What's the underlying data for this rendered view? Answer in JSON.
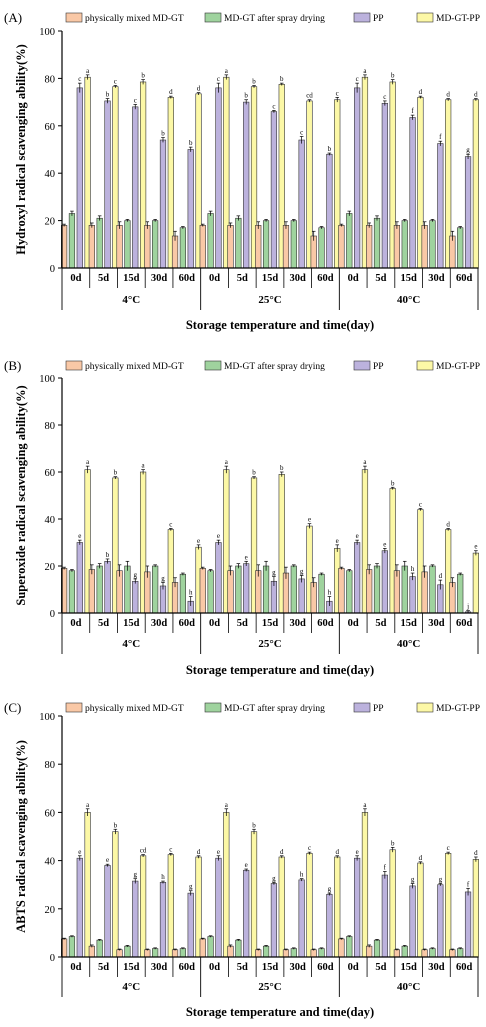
{
  "legend": {
    "series": [
      {
        "name": "physically mixed MD-GT",
        "color": "#f9c8a6"
      },
      {
        "name": "MD-GT after spray drying",
        "color": "#9fd39e"
      },
      {
        "name": "PP",
        "color": "#bcb2dd"
      },
      {
        "name": "MD-GT-PP",
        "color": "#fcf8a6"
      }
    ]
  },
  "chart_data": [
    {
      "type": "bar",
      "panel_label": "(A)",
      "ylabel": "Hydroxyl radical scavenging ability(%)",
      "xlabel": "Storage temperature and time(day)",
      "ylim": [
        0,
        100
      ],
      "yticks": [
        0,
        20,
        40,
        60,
        80,
        100
      ],
      "groups": [
        "4°C",
        "25°C",
        "40°C"
      ],
      "categories": [
        "0d",
        "5d",
        "15d",
        "30d",
        "60d"
      ],
      "series": [
        {
          "name": "physically mixed MD-GT",
          "values": [
            [
              18,
              18,
              18,
              18,
              13.5
            ],
            [
              18,
              18,
              18,
              18,
              13.5
            ],
            [
              18,
              18,
              18,
              18,
              13.5
            ]
          ],
          "errors": [
            [
              0.5,
              1,
              1.5,
              1.5,
              2
            ],
            [
              0.5,
              1,
              1.5,
              1.5,
              2
            ],
            [
              0.5,
              1,
              1.5,
              1.5,
              2
            ]
          ]
        },
        {
          "name": "MD-GT after spray drying",
          "values": [
            [
              23,
              21,
              20,
              20,
              17
            ],
            [
              23,
              21,
              20,
              20,
              17
            ],
            [
              23,
              21,
              20,
              20,
              17
            ]
          ],
          "errors": [
            [
              1,
              1,
              0.5,
              0.5,
              0.5
            ],
            [
              1,
              1,
              0.5,
              0.5,
              0.5
            ],
            [
              1,
              1,
              0.5,
              0.5,
              0.5
            ]
          ]
        },
        {
          "name": "PP",
          "values": [
            [
              76,
              70.5,
              68,
              54,
              50
            ],
            [
              76,
              70,
              66,
              54,
              48
            ],
            [
              76,
              69.5,
              63.5,
              52.5,
              47
            ]
          ],
          "errors": [
            [
              2,
              1,
              1,
              1,
              1
            ],
            [
              2,
              1,
              0.5,
              1.5,
              0.5
            ],
            [
              2,
              1,
              1,
              1,
              1
            ]
          ]
        },
        {
          "name": "MD-GT-PP",
          "values": [
            [
              80.5,
              76.5,
              78.5,
              72,
              73.5
            ],
            [
              80.5,
              76.5,
              77.5,
              70.5,
              71
            ],
            [
              80.5,
              78.5,
              72,
              71,
              71
            ]
          ],
          "errors": [
            [
              1,
              0.5,
              1,
              0.5,
              0.5
            ],
            [
              1,
              0.5,
              0.5,
              0.5,
              1
            ],
            [
              1,
              1,
              0.5,
              0.5,
              0.5
            ]
          ]
        }
      ],
      "labels": {
        "PP": [
          [
            "c",
            "b",
            "c",
            "b",
            "b"
          ],
          [
            "c",
            "b",
            "c",
            "c",
            "b"
          ],
          [
            "c",
            "c",
            "f",
            "f",
            "g"
          ]
        ],
        "MD-GT-PP": [
          [
            "a",
            "c",
            "b",
            "d",
            "d"
          ],
          [
            "a",
            "b",
            "b",
            "cd",
            "c"
          ],
          [
            "a",
            "b",
            "d",
            "d",
            "d"
          ]
        ]
      }
    },
    {
      "type": "bar",
      "panel_label": "(B)",
      "ylabel": "Superoxide radical scavenging ability(%)",
      "xlabel": "Storage temperature and time(day)",
      "ylim": [
        0,
        100
      ],
      "yticks": [
        0,
        20,
        40,
        60,
        80,
        100
      ],
      "groups": [
        "4°C",
        "25°C",
        "40°C"
      ],
      "categories": [
        "0d",
        "5d",
        "15d",
        "30d",
        "60d"
      ],
      "series": [
        {
          "name": "physically mixed MD-GT",
          "values": [
            [
              19,
              18.5,
              18,
              17.5,
              13
            ],
            [
              19,
              18,
              18,
              17,
              13
            ],
            [
              19,
              18.5,
              18,
              17.5,
              13
            ]
          ],
          "errors": [
            [
              0.5,
              2,
              2.5,
              2.5,
              2
            ],
            [
              0.5,
              2,
              2.5,
              2.5,
              2
            ],
            [
              0.5,
              2,
              2.5,
              2.5,
              2
            ]
          ]
        },
        {
          "name": "MD-GT after spray drying",
          "values": [
            [
              18,
              20,
              20,
              20,
              16.5
            ],
            [
              18,
              20,
              20,
              20,
              16.5
            ],
            [
              18,
              20,
              20,
              20,
              16.5
            ]
          ],
          "errors": [
            [
              0.5,
              1,
              2,
              0.5,
              0.5
            ],
            [
              0.5,
              1,
              2,
              0.5,
              0.5
            ],
            [
              0.5,
              1,
              2,
              0.5,
              0.5
            ]
          ]
        },
        {
          "name": "PP",
          "values": [
            [
              30,
              22,
              13.5,
              11.5,
              5
            ],
            [
              30,
              21,
              13.5,
              14.5,
              5
            ],
            [
              30,
              26.5,
              15.5,
              12,
              0.5
            ]
          ],
          "errors": [
            [
              1,
              1,
              1,
              1.5,
              2
            ],
            [
              1,
              1,
              2,
              1.5,
              2
            ],
            [
              1,
              1,
              1.5,
              2,
              0.5
            ]
          ]
        },
        {
          "name": "MD-GT-PP",
          "values": [
            [
              61,
              57.5,
              60,
              35.5,
              28
            ],
            [
              61,
              57.5,
              59,
              37,
              27.5
            ],
            [
              61,
              53,
              44,
              35.5,
              25.5
            ]
          ],
          "errors": [
            [
              1.5,
              0.5,
              1,
              0.5,
              1
            ],
            [
              1.5,
              0.5,
              1,
              1,
              1.5
            ],
            [
              1.5,
              0.5,
              0.5,
              0.5,
              1
            ]
          ]
        }
      ],
      "labels": {
        "PP": [
          [
            "e",
            "b",
            "g",
            "g",
            "h"
          ],
          [
            "e",
            "e",
            "g",
            "g",
            "h"
          ],
          [
            "e",
            "e",
            "h",
            "d",
            "j"
          ]
        ],
        "MD-GT-PP": [
          [
            "a",
            "b",
            "a",
            "c",
            "e"
          ],
          [
            "a",
            "b",
            "b",
            "e",
            "e"
          ],
          [
            "a",
            "b",
            "c",
            "d",
            "e"
          ]
        ]
      }
    },
    {
      "type": "bar",
      "panel_label": "(C)",
      "ylabel": "ABTS radical scavenging ability(%)",
      "xlabel": "Storage temperature and time(day)",
      "ylim": [
        0,
        100
      ],
      "yticks": [
        0,
        20,
        40,
        60,
        80,
        100
      ],
      "groups": [
        "4°C",
        "25°C",
        "40°C"
      ],
      "categories": [
        "0d",
        "5d",
        "15d",
        "30d",
        "60d"
      ],
      "series": [
        {
          "name": "physically mixed MD-GT",
          "values": [
            [
              7.5,
              4.5,
              3,
              3,
              3
            ],
            [
              7.5,
              4.5,
              3,
              3,
              3
            ],
            [
              7.5,
              4.5,
              3,
              3,
              3
            ]
          ],
          "errors": [
            [
              0.3,
              0.5,
              0.3,
              0.3,
              0.3
            ],
            [
              0.3,
              0.5,
              0.3,
              0.3,
              0.3
            ],
            [
              0.3,
              0.5,
              0.3,
              0.3,
              0.3
            ]
          ]
        },
        {
          "name": "MD-GT after spray drying",
          "values": [
            [
              8.5,
              7,
              4.5,
              3.5,
              3.5
            ],
            [
              8.5,
              7,
              4.5,
              3.5,
              3.5
            ],
            [
              8.5,
              7,
              4.5,
              3.5,
              3.5
            ]
          ],
          "errors": [
            [
              0.3,
              0.3,
              0.3,
              0.3,
              0.3
            ],
            [
              0.3,
              0.3,
              0.3,
              0.3,
              0.3
            ],
            [
              0.3,
              0.3,
              0.3,
              0.3,
              0.3
            ]
          ]
        },
        {
          "name": "PP",
          "values": [
            [
              41,
              38,
              31.5,
              31,
              26.5
            ],
            [
              41,
              36,
              30.5,
              32,
              26
            ],
            [
              41,
              34,
              29.5,
              30,
              27
            ]
          ],
          "errors": [
            [
              1,
              0.5,
              1,
              0.5,
              1
            ],
            [
              1,
              0.5,
              0.5,
              0.5,
              0.5
            ],
            [
              1,
              1.5,
              1,
              0.5,
              1.5
            ]
          ]
        },
        {
          "name": "MD-GT-PP",
          "values": [
            [
              60,
              52,
              42,
              42.5,
              41.5
            ],
            [
              60,
              52,
              41.5,
              43,
              41.5
            ],
            [
              60,
              44.5,
              39,
              43,
              40.5
            ]
          ],
          "errors": [
            [
              1.5,
              1,
              0.5,
              0.5,
              0.5
            ],
            [
              1.5,
              1,
              0.5,
              0.5,
              0.5
            ],
            [
              1.5,
              1,
              0.5,
              0.5,
              1
            ]
          ]
        }
      ],
      "labels": {
        "PP": [
          [
            "e",
            "e",
            "g",
            "h",
            "g"
          ],
          [
            "e",
            "e",
            "g",
            "h",
            "g"
          ],
          [
            "e",
            "f",
            "g",
            "g",
            "f"
          ]
        ],
        "MD-GT-PP": [
          [
            "a",
            "b",
            "cd",
            "c",
            "d"
          ],
          [
            "a",
            "b",
            "d",
            "c",
            "d"
          ],
          [
            "a",
            "b",
            "d",
            "c",
            "d"
          ]
        ]
      }
    }
  ]
}
